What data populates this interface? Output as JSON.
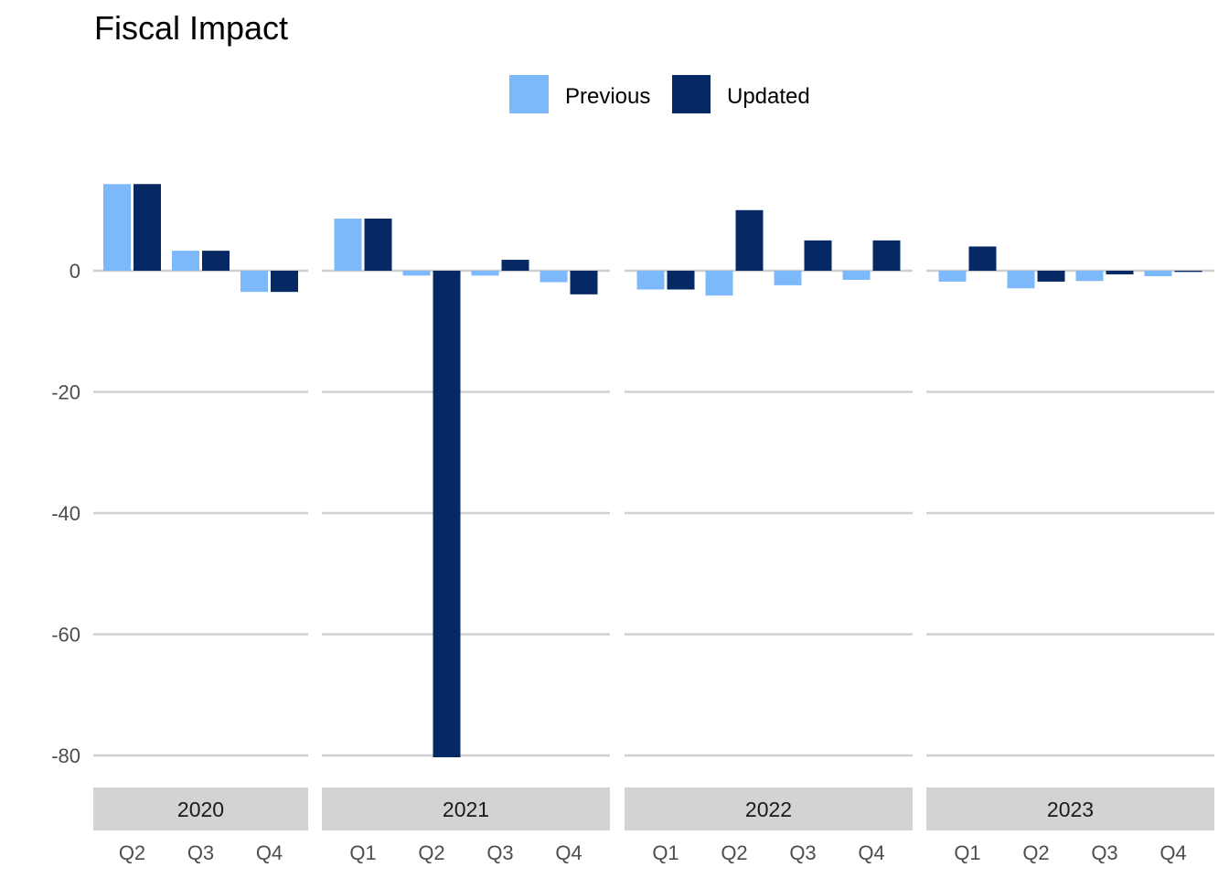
{
  "chart_data": {
    "type": "bar",
    "title": "Fiscal Impact",
    "xlabel": "",
    "ylabel": "",
    "ylim": [
      -88,
      18
    ],
    "yticks": [
      0,
      -20,
      -40,
      -60,
      -80
    ],
    "grid": true,
    "legend": {
      "placement": "top-center",
      "entries": [
        {
          "name": "Previous",
          "color": "#7db8fb"
        },
        {
          "name": "Updated",
          "color": "#062863"
        }
      ]
    },
    "facets": [
      {
        "label": "2020",
        "categories": [
          "Q2",
          "Q3",
          "Q4"
        ],
        "series": [
          {
            "name": "Previous",
            "values": [
              14.3,
              3.3,
              -3.5
            ]
          },
          {
            "name": "Updated",
            "values": [
              14.3,
              3.3,
              -3.5
            ]
          }
        ]
      },
      {
        "label": "2021",
        "categories": [
          "Q1",
          "Q2",
          "Q3",
          "Q4"
        ],
        "series": [
          {
            "name": "Previous",
            "values": [
              8.6,
              -0.8,
              -0.8,
              -1.9
            ]
          },
          {
            "name": "Updated",
            "values": [
              8.6,
              -80.3,
              1.8,
              -3.9
            ]
          }
        ]
      },
      {
        "label": "2022",
        "categories": [
          "Q1",
          "Q2",
          "Q3",
          "Q4"
        ],
        "series": [
          {
            "name": "Previous",
            "values": [
              -3.1,
              -4.1,
              -2.4,
              -1.5
            ]
          },
          {
            "name": "Updated",
            "values": [
              -3.1,
              10.0,
              5.0,
              5.0
            ]
          }
        ]
      },
      {
        "label": "2023",
        "categories": [
          "Q1",
          "Q2",
          "Q3",
          "Q4"
        ],
        "series": [
          {
            "name": "Previous",
            "values": [
              -1.8,
              -2.9,
              -1.7,
              -0.9
            ]
          },
          {
            "name": "Updated",
            "values": [
              4.0,
              -1.8,
              -0.6,
              -0.2
            ]
          }
        ]
      }
    ]
  }
}
